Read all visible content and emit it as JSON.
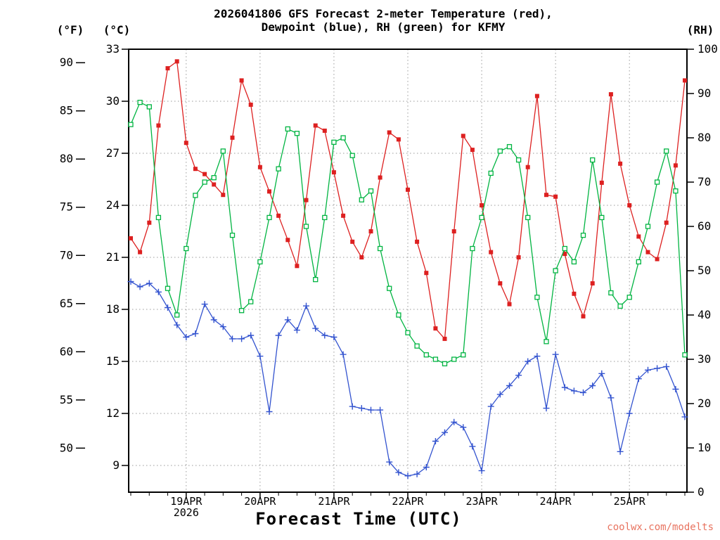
{
  "title": {
    "line1": "2026041806 GFS Forecast 2-meter Temperature (red),",
    "line2": "Dewpoint (blue), RH (green) for KFMY"
  },
  "axis_headers": {
    "fahrenheit": "(°F)",
    "celsius": "(°C)",
    "rh": "(RH)"
  },
  "x_axis": {
    "title": "Forecast Time (UTC)",
    "year_label": "2026"
  },
  "watermark": {
    "text": "coolwx.com/modelts",
    "color": "#e8735f"
  },
  "chart_data": {
    "type": "line",
    "station": "KFMY",
    "model_run": "2026041806",
    "grid": "dotted",
    "forecast_hours": [
      0,
      3,
      6,
      9,
      12,
      15,
      18,
      21,
      24,
      27,
      30,
      33,
      36,
      39,
      42,
      45,
      48,
      51,
      54,
      57,
      60,
      63,
      66,
      69,
      72,
      75,
      78,
      81,
      84,
      87,
      90,
      93,
      96,
      99,
      102,
      105,
      108,
      111,
      114,
      117,
      120,
      123,
      126,
      129,
      132,
      135,
      138,
      141,
      144,
      147,
      150,
      153,
      156,
      159,
      162,
      165,
      168,
      171,
      174,
      177,
      180
    ],
    "day_ticks": [
      {
        "label": "19APR",
        "index": 6
      },
      {
        "label": "20APR",
        "index": 14
      },
      {
        "label": "21APR",
        "index": 22
      },
      {
        "label": "22APR",
        "index": 30
      },
      {
        "label": "23APR",
        "index": 38
      },
      {
        "label": "24APR",
        "index": 46
      },
      {
        "label": "25APR",
        "index": 54
      }
    ],
    "left_axis_c": {
      "label": "°C",
      "ticks": [
        9,
        12,
        15,
        18,
        21,
        24,
        27,
        30,
        33
      ],
      "value_at_top": 33,
      "degrees_per_gridstep": 3
    },
    "left_axis_f": {
      "label": "°F",
      "ticks": [
        50,
        55,
        60,
        65,
        70,
        75,
        80,
        85,
        90
      ]
    },
    "right_axis_rh": {
      "label": "RH",
      "min": 0,
      "max": 100,
      "ticks": [
        0,
        10,
        20,
        30,
        40,
        50,
        60,
        70,
        80,
        90,
        100
      ]
    },
    "series": [
      {
        "name": "2-meter Temperature",
        "unit": "°C",
        "axis": "left",
        "color": "#dd2020",
        "marker": "filled-square",
        "values": [
          22.1,
          21.3,
          23.0,
          28.6,
          31.9,
          32.3,
          27.6,
          26.1,
          25.8,
          25.2,
          24.6,
          27.9,
          31.2,
          29.8,
          26.2,
          24.8,
          23.4,
          22.0,
          20.5,
          24.3,
          28.6,
          28.3,
          25.9,
          23.4,
          21.9,
          21.0,
          22.5,
          25.6,
          28.2,
          27.8,
          24.9,
          21.9,
          20.1,
          16.9,
          16.3,
          22.5,
          28.0,
          27.2,
          24.0,
          21.3,
          19.5,
          18.3,
          21.0,
          26.2,
          30.3,
          24.6,
          24.5,
          21.2,
          18.9,
          17.6,
          19.5,
          25.3,
          30.4,
          26.4,
          24.0,
          22.2,
          21.3,
          20.9,
          23.0,
          26.3,
          31.2
        ]
      },
      {
        "name": "Dewpoint",
        "unit": "°C",
        "axis": "left",
        "color": "#3353cf",
        "marker": "plus",
        "values": [
          19.6,
          19.3,
          19.5,
          19.0,
          18.1,
          17.1,
          16.4,
          16.6,
          18.3,
          17.4,
          17.0,
          16.3,
          16.3,
          16.5,
          15.3,
          12.1,
          16.5,
          17.4,
          16.8,
          18.2,
          16.9,
          16.5,
          16.4,
          15.4,
          12.4,
          12.3,
          12.2,
          12.2,
          9.2,
          8.6,
          8.4,
          8.5,
          8.9,
          10.4,
          10.9,
          11.5,
          11.2,
          10.1,
          8.7,
          12.4,
          13.1,
          13.6,
          14.2,
          15.0,
          15.3,
          12.3,
          15.4,
          13.5,
          13.3,
          13.2,
          13.6,
          14.3,
          12.9,
          9.8,
          12.0,
          14.0,
          14.5,
          14.6,
          14.7,
          13.4,
          11.8
        ]
      },
      {
        "name": "Relative Humidity",
        "unit": "%",
        "axis": "right",
        "color": "#00b441",
        "marker": "open-square",
        "values": [
          83,
          88,
          87,
          62,
          46,
          40,
          55,
          67,
          70,
          71,
          77,
          58,
          41,
          43,
          52,
          62,
          73,
          82,
          81,
          60,
          48,
          62,
          79,
          80,
          76,
          66,
          68,
          55,
          46,
          40,
          36,
          33,
          31,
          30,
          29,
          30,
          31,
          55,
          62,
          72,
          77,
          78,
          75,
          62,
          44,
          34,
          50,
          55,
          52,
          58,
          75,
          62,
          45,
          42,
          44,
          52,
          60,
          70,
          77,
          68,
          31
        ]
      }
    ]
  }
}
